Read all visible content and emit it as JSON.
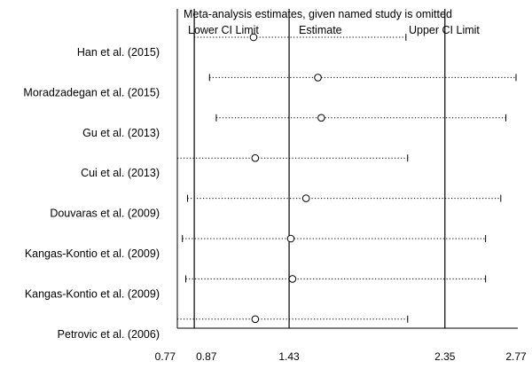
{
  "chart_data": {
    "type": "scatter",
    "title": "Meta-analysis estimates, given named study is omitted",
    "legend": {
      "placement": "top",
      "entries": [
        "Lower CI Limit",
        "Estimate",
        "Upper CI Limit"
      ]
    },
    "x_ticks": [
      "0.77",
      "0.87",
      "1.43",
      "2.35",
      "2.77"
    ],
    "xlim": [
      0.77,
      2.77
    ],
    "reference_lines": {
      "lower_ci": 0.87,
      "estimate": 1.43,
      "upper_ci": 2.35
    },
    "studies": [
      {
        "label": "Han et al. (2015)",
        "lower": 0.87,
        "estimate": 1.22,
        "upper": 2.12
      },
      {
        "label": "Moradzadegan et al. (2015)",
        "lower": 0.96,
        "estimate": 1.6,
        "upper": 2.77
      },
      {
        "label": "Gu et al. (2013)",
        "lower": 1.0,
        "estimate": 1.62,
        "upper": 2.71
      },
      {
        "label": "Cui et al. (2013)",
        "lower": 0.77,
        "estimate": 1.23,
        "upper": 2.13
      },
      {
        "label": "Douvaras et al. (2009)",
        "lower": 0.83,
        "estimate": 1.53,
        "upper": 2.68
      },
      {
        "label": "Kangas-Kontio et al. (2009)",
        "lower": 0.8,
        "estimate": 1.44,
        "upper": 2.59
      },
      {
        "label": "Kangas-Kontio et al. (2009)",
        "lower": 0.82,
        "estimate": 1.45,
        "upper": 2.59
      },
      {
        "label": "Petrovic et al. (2006)",
        "lower": 0.77,
        "estimate": 1.23,
        "upper": 2.13
      }
    ]
  }
}
